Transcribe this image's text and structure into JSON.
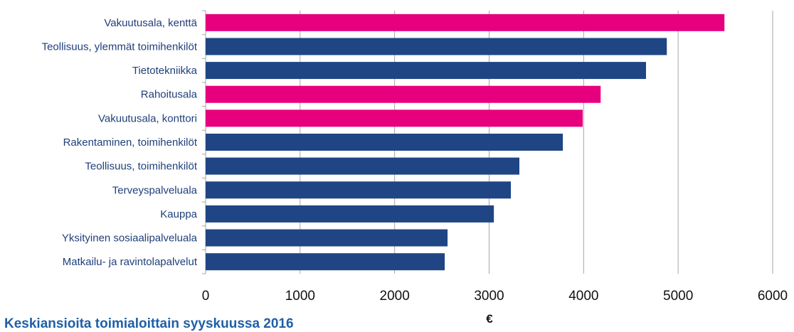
{
  "chart_data": {
    "type": "bar",
    "orientation": "horizontal",
    "categories": [
      "Vakuutusala, kenttä",
      "Teollisuus, ylemmät toimihenkilöt",
      "Tietotekniikka",
      "Rahoitusala",
      "Vakuutusala, konttori",
      "Rakentaminen, toimihenkilöt",
      "Teollisuus, toimihenkilöt",
      "Terveyspalveluala",
      "Kauppa",
      "Yksityinen sosiaalipalveluala",
      "Matkailu- ja ravintolapalvelut"
    ],
    "values": [
      5490,
      4880,
      4660,
      4180,
      3990,
      3780,
      3320,
      3230,
      3050,
      2560,
      2530
    ],
    "highlighted": [
      true,
      false,
      false,
      true,
      true,
      false,
      false,
      false,
      false,
      false,
      false
    ],
    "xlabel": "€",
    "ylabel": "",
    "xlim": [
      0,
      6000
    ],
    "xticks": [
      0,
      1000,
      2000,
      3000,
      4000,
      5000,
      6000
    ],
    "grid": "vertical",
    "legend": "none",
    "title": "Keskiansioita toimialoittain syyskuussa 2016",
    "colors": {
      "highlight": "#e6007e",
      "default": "#1f4584",
      "grid": "#a6a6a6",
      "label": "#1f3f7a"
    }
  }
}
